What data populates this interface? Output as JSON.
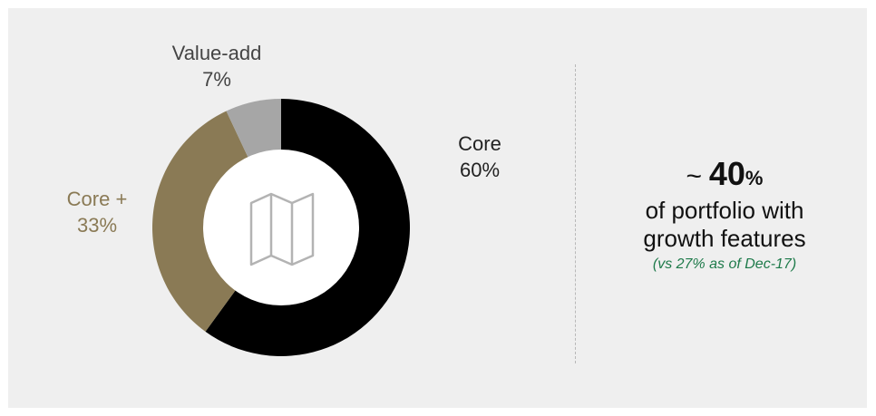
{
  "chart_data": {
    "type": "pie",
    "variant": "donut",
    "categories": [
      "Core",
      "Core +",
      "Value-add"
    ],
    "values": [
      60,
      33,
      7
    ],
    "value_labels": [
      "60%",
      "33%",
      "7%"
    ],
    "colors": [
      "#000000",
      "#8a7a55",
      "#a6a6a6"
    ],
    "label_colors": [
      "#222222",
      "#8a7a55",
      "#444444"
    ],
    "center_icon": "map-icon"
  },
  "callout": {
    "tilde": "~",
    "number": "40",
    "percent_sign": "%",
    "line2": "of portfolio with",
    "line3": "growth features",
    "note": "(vs 27% as of Dec-17)",
    "note_color": "#1e7a4a"
  }
}
